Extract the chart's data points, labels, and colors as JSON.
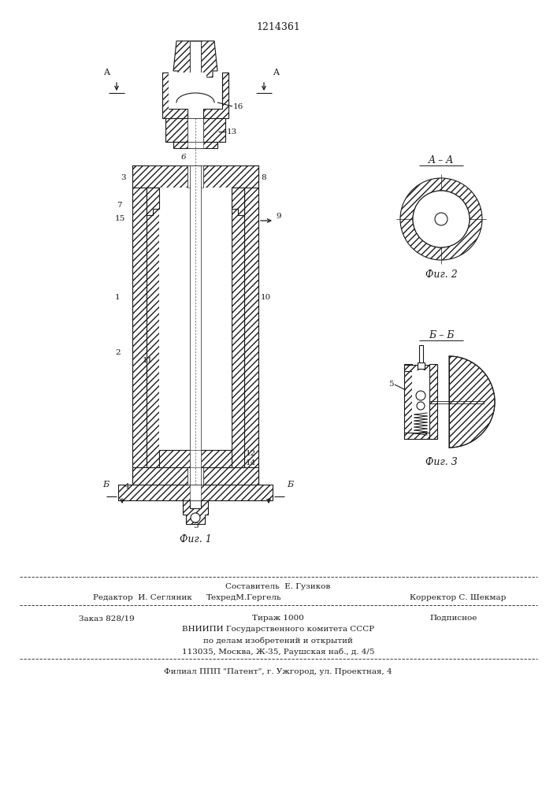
{
  "patent_number": "1214361",
  "fig1_caption": "Фиг. 1",
  "fig2_caption": "Фиг. 2",
  "fig3_caption": "Фиг. 3",
  "section_aa": "A – A",
  "section_bb": "Б – Б",
  "label_A": "A",
  "label_B": "Б",
  "footer_line1": "Составитель  Е. Гузиков",
  "footer_left2": "Редактор  И. Сегляник",
  "footer_mid2": "ТехредМ.Гергель",
  "footer_right2": "Корректор С. Шекмар",
  "footer_left3": "Заказ 828/19",
  "footer_mid3": "Тираж 1000",
  "footer_right3": "Подписное",
  "footer_line4": "ВНИИПИ Государственного комитета СССР",
  "footer_line5": "по делам изобретений и открытий",
  "footer_line6": "113035, Москва, Ж-35, Раушская наб., д. 4/5",
  "footer_line7": "Филиал ППП \"Патент\", г. Ужгород, ул. Проектная, 4",
  "bg_color": "#ffffff",
  "line_color": "#1a1a1a"
}
